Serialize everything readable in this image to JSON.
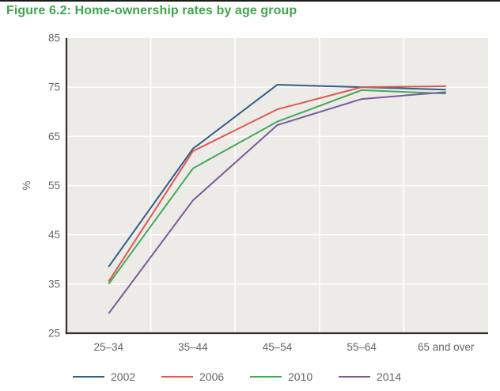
{
  "page": {
    "top_rule_color": "#1a1a1a"
  },
  "chart_data": {
    "type": "line",
    "title": "Figure 6.2: Home-ownership rates by age group",
    "categories": [
      "25–34",
      "35–44",
      "45–54",
      "55–64",
      "65 and over"
    ],
    "series": [
      {
        "name": "2002",
        "color": "#305f87",
        "values": [
          38.5,
          62.5,
          75.5,
          75.0,
          74.5
        ]
      },
      {
        "name": "2006",
        "color": "#e25750",
        "values": [
          35.5,
          62.0,
          70.5,
          75.0,
          75.2
        ]
      },
      {
        "name": "2010",
        "color": "#41aa5a",
        "values": [
          35.0,
          58.5,
          68.0,
          74.4,
          73.7
        ]
      },
      {
        "name": "2014",
        "color": "#7b5b9b",
        "values": [
          29.0,
          52.0,
          67.3,
          72.6,
          74.0
        ]
      }
    ],
    "xlabel": "",
    "ylabel": "%",
    "ylim": [
      25,
      85
    ],
    "yticks": [
      25,
      35,
      45,
      55,
      65,
      75,
      85
    ],
    "grid": true,
    "legend_position": "bottom",
    "colors": {
      "plot_bg": "#edebe7",
      "gridline": "#ffffff",
      "axis": "#2f2f2f",
      "tick_label": "#666666",
      "title": "#3fa54b",
      "legend_text": "#666666"
    }
  }
}
